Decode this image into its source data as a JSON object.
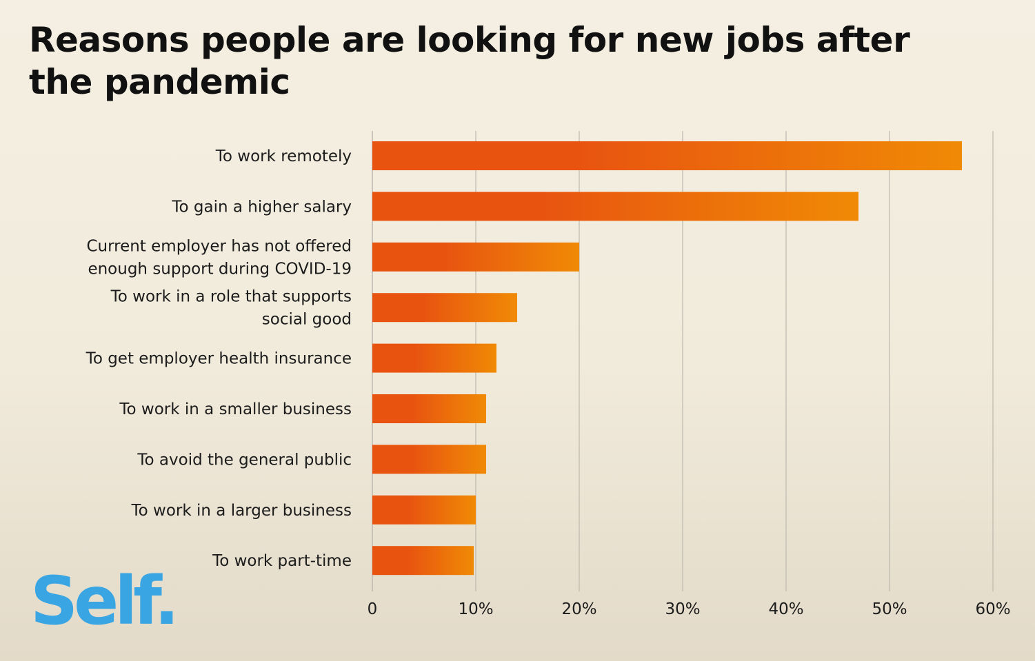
{
  "title": "Reasons people are looking for new jobs after the pandemic",
  "logo": {
    "text": "Self.",
    "color": "#3aa5e3"
  },
  "colors": {
    "bar_start": "#e85410",
    "bar_end": "#f08a05",
    "grid": "#bdb8ae",
    "background": "#f2ede0"
  },
  "chart_data": {
    "type": "bar",
    "orientation": "horizontal",
    "title": "Reasons people are looking for new jobs after the pandemic",
    "xlabel": "",
    "ylabel": "",
    "categories": [
      [
        "To work remotely"
      ],
      [
        "To gain a higher salary"
      ],
      [
        "Current employer has not offered",
        "enough support during COVID-19"
      ],
      [
        "To work in a role that supports",
        "social good"
      ],
      [
        "To get employer health insurance"
      ],
      [
        "To work in a smaller business"
      ],
      [
        "To avoid the general public"
      ],
      [
        "To work in a larger business"
      ],
      [
        "To work part-time"
      ]
    ],
    "values": [
      57,
      47,
      20,
      14,
      12,
      11,
      11,
      10,
      9.8
    ],
    "xlim": [
      0,
      60
    ],
    "ticks": [
      0,
      10,
      20,
      30,
      40,
      50,
      60
    ],
    "tick_labels": [
      "0",
      "10%",
      "20%",
      "30%",
      "40%",
      "50%",
      "60%"
    ],
    "grid": true
  }
}
